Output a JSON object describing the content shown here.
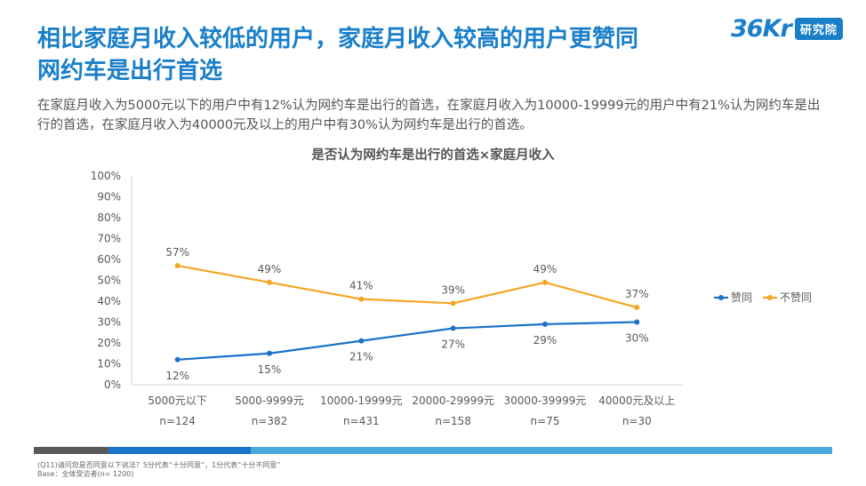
{
  "headline": {
    "line1": "相比家庭月收入较低的用户，家庭月收入较高的用户更赞同",
    "line2": "网约车是出行首选"
  },
  "description": "在家庭月收入为5000元以下的用户中有12%认为网约车是出行的首选，在家庭月收入为10000-19999元的用户中有21%认为网约车是出行的首选，在家庭月收入为40000元及以上的用户中有30%认为网约车是出行的首选。",
  "logo": {
    "mark": "36Kr",
    "badge": "研究院"
  },
  "colors": {
    "agree": "#1a72c9",
    "disagree": "#f5a623",
    "title": "#1a7fc9",
    "bar_dark": "#595959",
    "bar_mid": "#1a72c9",
    "bar_light": "#4aa8de"
  },
  "footer": {
    "question": "(Q11)请问您是否同意以下说法？5分代表“十分同意”，1分代表“十分不同意”",
    "base": "Base：全体受访者(n= 1200)"
  },
  "chart_data": {
    "type": "line",
    "title": "是否认为网约车是出行的首选×家庭月收入",
    "categories": [
      "5000元以下",
      "5000-9999元",
      "10000-19999元",
      "20000-29999元",
      "30000-39999元",
      "40000元及以上"
    ],
    "sample_sizes": [
      "n=124",
      "n=382",
      "n=431",
      "n=158",
      "n=75",
      "n=30"
    ],
    "series": [
      {
        "name": "赞同",
        "values": [
          12,
          15,
          21,
          27,
          29,
          30
        ],
        "labels": [
          "12%",
          "15%",
          "21%",
          "27%",
          "29%",
          "30%"
        ]
      },
      {
        "name": "不赞同",
        "values": [
          57,
          49,
          41,
          39,
          49,
          37
        ],
        "labels": [
          "57%",
          "49%",
          "41%",
          "39%",
          "49%",
          "37%"
        ]
      }
    ],
    "y_ticks": [
      "0%",
      "10%",
      "20%",
      "30%",
      "40%",
      "50%",
      "60%",
      "70%",
      "80%",
      "90%",
      "100%"
    ],
    "ylim": [
      0,
      100
    ],
    "legend": "right"
  }
}
